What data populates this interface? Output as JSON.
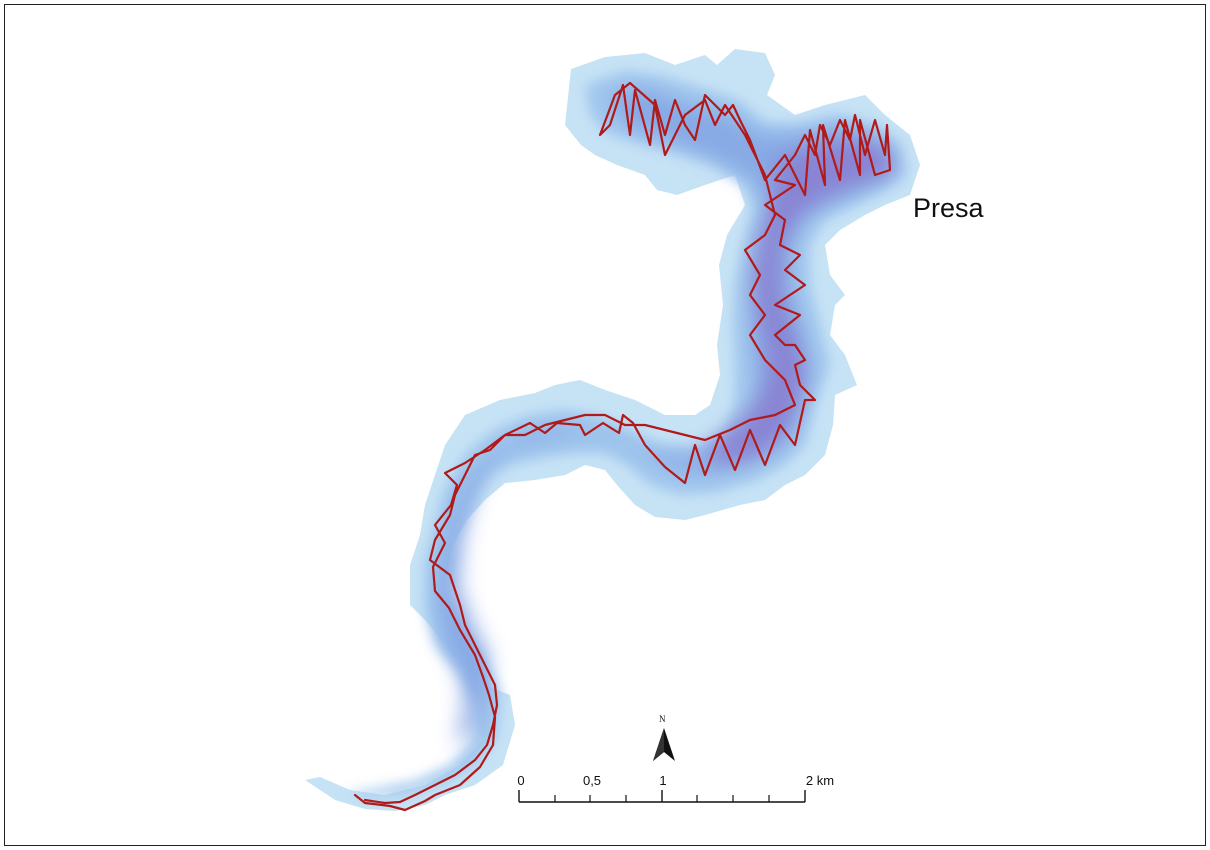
{
  "map": {
    "place_label": "Presa",
    "north_letter": "N",
    "scale_labels": [
      "0",
      "0,5",
      "1",
      "2 km"
    ],
    "colors": {
      "water_outer": "#c6e2f5",
      "water_mid": "#a3c9ee",
      "water_inner": "#7f9fe2",
      "water_core": "#8a74cc",
      "track": "#b01a1a",
      "frame": "#222222"
    }
  }
}
